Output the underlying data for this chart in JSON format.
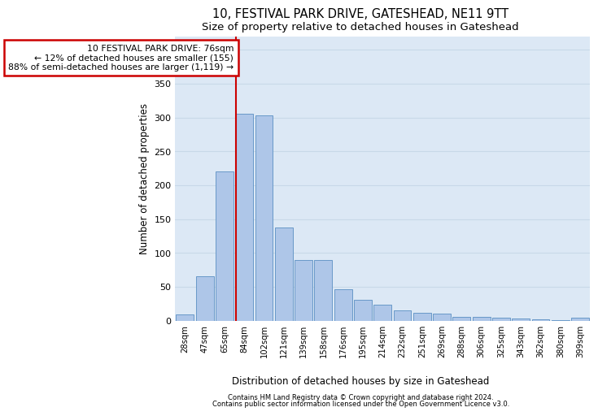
{
  "title1": "10, FESTIVAL PARK DRIVE, GATESHEAD, NE11 9TT",
  "title2": "Size of property relative to detached houses in Gateshead",
  "xlabel": "Distribution of detached houses by size in Gateshead",
  "ylabel": "Number of detached properties",
  "bar_labels": [
    "28sqm",
    "47sqm",
    "65sqm",
    "84sqm",
    "102sqm",
    "121sqm",
    "139sqm",
    "158sqm",
    "176sqm",
    "195sqm",
    "214sqm",
    "232sqm",
    "251sqm",
    "269sqm",
    "288sqm",
    "306sqm",
    "325sqm",
    "343sqm",
    "362sqm",
    "380sqm",
    "399sqm"
  ],
  "bar_values": [
    9,
    65,
    220,
    305,
    303,
    137,
    89,
    89,
    46,
    31,
    23,
    15,
    11,
    10,
    5,
    6,
    4,
    3,
    2,
    1,
    4
  ],
  "bar_color": "#aec6e8",
  "bar_edge_color": "#5a8fc2",
  "annotation_text": "10 FESTIVAL PARK DRIVE: 76sqm\n← 12% of detached houses are smaller (155)\n88% of semi-detached houses are larger (1,119) →",
  "annotation_box_color": "#ffffff",
  "annotation_box_edge_color": "#cc0000",
  "vline_color": "#cc0000",
  "grid_color": "#c8d8e8",
  "background_color": "#dce8f5",
  "footnote1": "Contains HM Land Registry data © Crown copyright and database right 2024.",
  "footnote2": "Contains public sector information licensed under the Open Government Licence v3.0.",
  "ylim": [
    0,
    420
  ],
  "vline_bar_index": 2.58
}
